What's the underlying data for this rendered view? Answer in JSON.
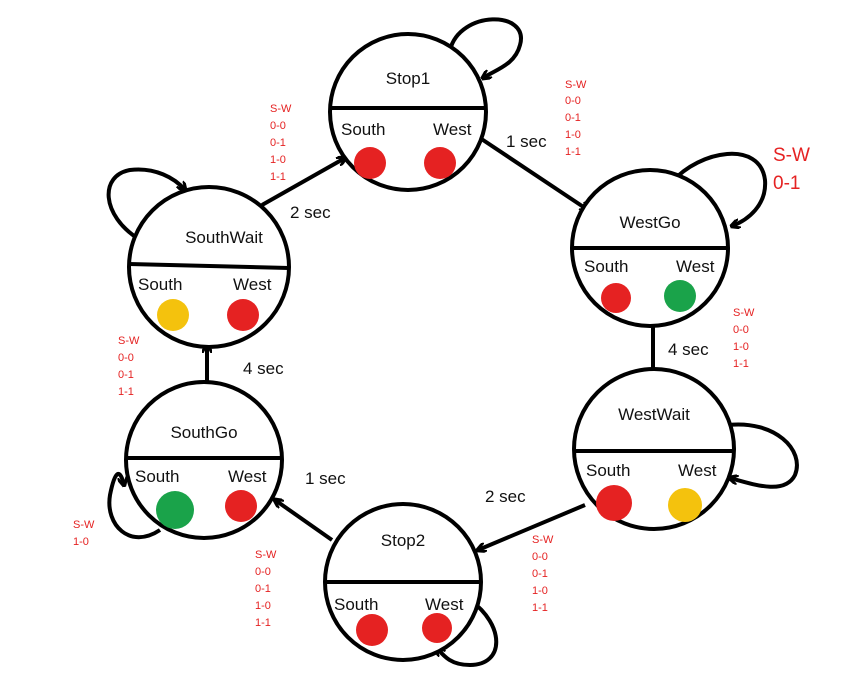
{
  "colors": {
    "line": "#000000",
    "red": "#e52222",
    "yellow": "#f4c20d",
    "green": "#1aa34a",
    "condition_text": "#e52222"
  },
  "states": {
    "stop1": {
      "name": "Stop1",
      "south_label": "South",
      "west_label": "West",
      "south_light": "red",
      "west_light": "red"
    },
    "westgo": {
      "name": "WestGo",
      "south_label": "South",
      "west_label": "West",
      "south_light": "red",
      "west_light": "green"
    },
    "westwait": {
      "name": "WestWait",
      "south_label": "South",
      "west_label": "West",
      "south_light": "red",
      "west_light": "yellow"
    },
    "stop2": {
      "name": "Stop2",
      "south_label": "South",
      "west_label": "West",
      "south_light": "red",
      "west_light": "red"
    },
    "southgo": {
      "name": "SouthGo",
      "south_label": "South",
      "west_label": "West",
      "south_light": "green",
      "west_light": "red"
    },
    "southwait": {
      "name": "SouthWait",
      "south_label": "South",
      "west_label": "West",
      "south_light": "yellow",
      "west_light": "red"
    }
  },
  "transitions": {
    "stop1_to_westgo": "1 sec",
    "westgo_to_westwait": "4 sec",
    "westwait_to_stop2": "2 sec",
    "stop2_to_southgo": "1 sec",
    "southgo_to_southwait": "4 sec",
    "southwait_to_stop1": "2 sec"
  },
  "conditions": {
    "stop1_self": [
      "S-W",
      "0-0",
      "0-1",
      "1-0",
      "1-1"
    ],
    "westgo_self": [
      "S-W",
      "0-1"
    ],
    "westgo_exit": [
      "S-W",
      "0-0",
      "1-0",
      "1-1"
    ],
    "westwait_self": [
      "S-W",
      "0-0",
      "0-1",
      "1-0",
      "1-1"
    ],
    "stop2_self": [
      "S-W",
      "0-0",
      "0-1",
      "1-0",
      "1-1"
    ],
    "southgo_self": [
      "S-W",
      "1-0"
    ],
    "southgo_exit": [
      "S-W",
      "0-0",
      "0-1",
      "1-1"
    ],
    "southwait_self": [
      "S-W",
      "0-0",
      "0-1",
      "1-0",
      "1-1"
    ]
  }
}
